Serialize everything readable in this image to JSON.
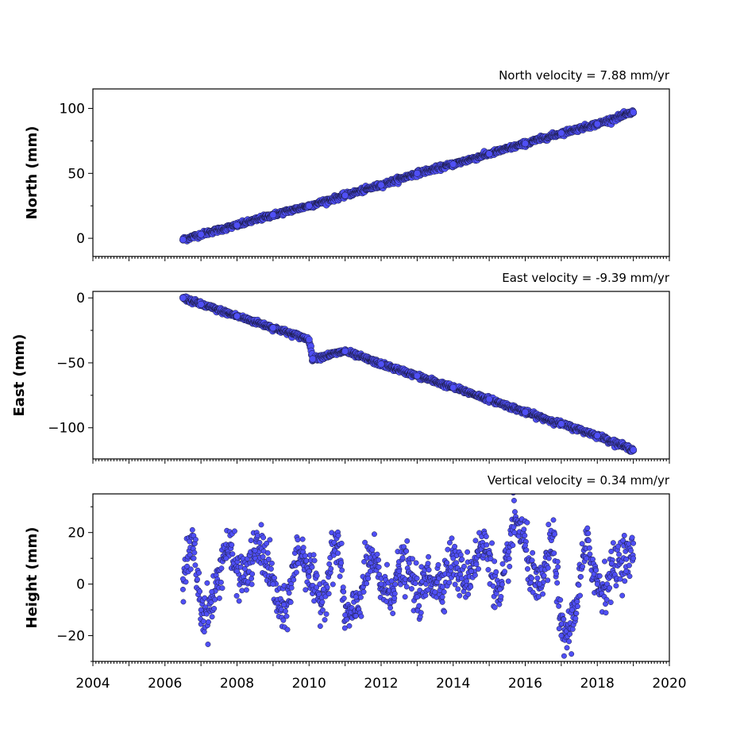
{
  "chart_data": [
    {
      "type": "scatter",
      "panel": "north",
      "annotation": "North velocity = 7.88 mm/yr",
      "ylabel": "North (mm)",
      "xlim": [
        2004,
        2020
      ],
      "ylim": [
        -14,
        115
      ],
      "yticks": [
        0,
        50,
        100
      ],
      "ytick_labels": [
        "0",
        "50",
        "100"
      ],
      "velocity_mm_per_yr": 7.88,
      "series": [
        {
          "x": [
            2006.5,
            2007.0,
            2008.0,
            2009.0,
            2010.0,
            2011.0,
            2012.0,
            2013.0,
            2014.0,
            2015.0,
            2016.0,
            2017.0,
            2018.0,
            2019.0
          ],
          "y": [
            -1,
            3,
            10,
            18,
            25,
            33,
            41,
            50,
            57,
            65,
            73,
            81,
            88,
            97
          ]
        }
      ],
      "show_xtick_labels": false
    },
    {
      "type": "scatter",
      "panel": "east",
      "annotation": "East velocity = -9.39 mm/yr",
      "ylabel": "East (mm)",
      "xlim": [
        2004,
        2020
      ],
      "ylim": [
        -124,
        5
      ],
      "yticks": [
        0,
        -50,
        -100
      ],
      "ytick_labels": [
        "0",
        "−50",
        "−100"
      ],
      "velocity_mm_per_yr": -9.39,
      "series": [
        {
          "x": [
            2006.5,
            2007.0,
            2008.0,
            2009.0,
            2010.0,
            2010.1,
            2011.0,
            2012.0,
            2013.0,
            2014.0,
            2015.0,
            2016.0,
            2017.0,
            2018.0,
            2019.0
          ],
          "y": [
            0,
            -5,
            -14,
            -23,
            -32,
            -47,
            -41,
            -51,
            -60,
            -69,
            -78,
            -88,
            -97,
            -106,
            -117
          ]
        }
      ],
      "show_xtick_labels": false
    },
    {
      "type": "scatter",
      "panel": "height",
      "annotation": "Vertical velocity = 0.34 mm/yr",
      "ylabel": "Height (mm)",
      "xlim": [
        2004,
        2020
      ],
      "ylim": [
        -30,
        35
      ],
      "yticks": [
        -20,
        0,
        20
      ],
      "ytick_labels": [
        "−20",
        "0",
        "20"
      ],
      "velocity_mm_per_yr": 0.34,
      "series": [
        {
          "x": [
            2006.5,
            2006.8,
            2007.0,
            2007.3,
            2007.7,
            2008.0,
            2008.5,
            2009.0,
            2009.3,
            2009.7,
            2010.0,
            2010.4,
            2010.8,
            2011.0,
            2011.3,
            2011.7,
            2012.0,
            2012.5,
            2013.0,
            2013.3,
            2013.7,
            2014.0,
            2014.5,
            2015.0,
            2015.3,
            2015.7,
            2016.0,
            2016.4,
            2016.8,
            2017.0,
            2017.3,
            2017.7,
            2018.0,
            2018.4,
            2018.8,
            2019.0
          ],
          "y": [
            2,
            10,
            -10,
            -3,
            10,
            5,
            13,
            0,
            -8,
            8,
            5,
            -2,
            12,
            -12,
            -5,
            5,
            0,
            5,
            -5,
            8,
            -5,
            10,
            5,
            12,
            -2,
            20,
            15,
            0,
            12,
            -20,
            -10,
            10,
            0,
            8,
            5,
            10
          ]
        }
      ],
      "show_xtick_labels": true,
      "xticks": [
        2004,
        2006,
        2008,
        2010,
        2012,
        2014,
        2016,
        2018,
        2020
      ],
      "xtick_labels": [
        "2004",
        "2006",
        "2008",
        "2010",
        "2012",
        "2014",
        "2016",
        "2018",
        "2020"
      ]
    }
  ],
  "colors": {
    "marker_fill": "#4f4ff5",
    "marker_edge": "#1a1a40",
    "axis": "#000000"
  }
}
